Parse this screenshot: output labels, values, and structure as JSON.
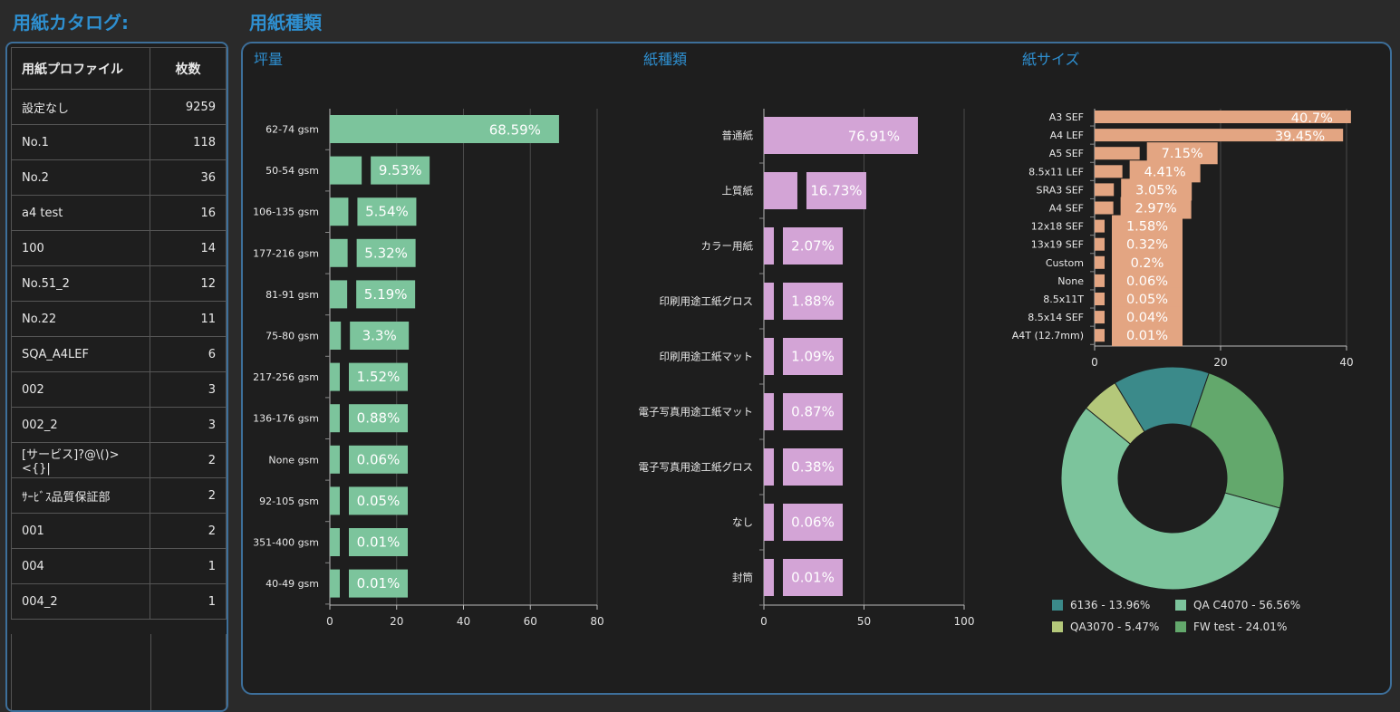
{
  "catalog": {
    "title": "用紙カタログ:",
    "headers": {
      "profile": "用紙プロファイル",
      "count": "枚数"
    },
    "rows": [
      {
        "name": "設定なし",
        "count": "9259"
      },
      {
        "name": "No.1",
        "count": "118"
      },
      {
        "name": "No.2",
        "count": "36"
      },
      {
        "name": "a4 test",
        "count": "16"
      },
      {
        "name": "100",
        "count": "14"
      },
      {
        "name": "No.51_2",
        "count": "12"
      },
      {
        "name": "No.22",
        "count": "11"
      },
      {
        "name": "SQA_A4LEF",
        "count": "6"
      },
      {
        "name": "002",
        "count": "3"
      },
      {
        "name": "002_2",
        "count": "3"
      },
      {
        "name": "[サービス]?@\\()><{}|",
        "count": "2"
      },
      {
        "name": "ｻｰﾋﾞｽ品質保証部",
        "count": "2"
      },
      {
        "name": "001",
        "count": "2"
      },
      {
        "name": "004",
        "count": "1"
      },
      {
        "name": "004_2",
        "count": "1"
      }
    ]
  },
  "types": {
    "title": "用紙種類"
  },
  "chart_data": [
    {
      "id": "weight",
      "type": "bar",
      "orientation": "horizontal",
      "title": "坪量",
      "categories": [
        "62-74 gsm",
        "50-54 gsm",
        "106-135 gsm",
        "177-216 gsm",
        "81-91 gsm",
        "75-80 gsm",
        "217-256 gsm",
        "136-176 gsm",
        "None gsm",
        "92-105 gsm",
        "351-400 gsm",
        "40-49 gsm"
      ],
      "values": [
        68.59,
        9.53,
        5.54,
        5.32,
        5.19,
        3.3,
        1.52,
        0.88,
        0.06,
        0.05,
        0.01,
        0.01
      ],
      "labels": [
        "68.59%",
        "9.53%",
        "5.54%",
        "5.32%",
        "5.19%",
        "3.3%",
        "1.52%",
        "0.88%",
        "0.06%",
        "0.05%",
        "0.01%",
        "0.01%"
      ],
      "xlim": [
        0,
        80
      ],
      "xticks": [
        0,
        20,
        40,
        60,
        80
      ],
      "grid": true,
      "color": "#7cc49c"
    },
    {
      "id": "kind",
      "type": "bar",
      "orientation": "horizontal",
      "title": "紙種類",
      "categories": [
        "普通紙",
        "上質紙",
        "カラー用紙",
        "印刷用途工紙グロス",
        "印刷用途工紙マット",
        "電子写真用途工紙マット",
        "電子写真用途工紙グロス",
        "なし",
        "封筒"
      ],
      "values": [
        76.91,
        16.73,
        2.07,
        1.88,
        1.09,
        0.87,
        0.38,
        0.06,
        0.01
      ],
      "labels": [
        "76.91%",
        "16.73%",
        "2.07%",
        "1.88%",
        "1.09%",
        "0.87%",
        "0.38%",
        "0.06%",
        "0.01%"
      ],
      "xlim": [
        0,
        100
      ],
      "xticks": [
        0,
        50,
        100
      ],
      "grid": true,
      "color": "#d3a4d6"
    },
    {
      "id": "size",
      "type": "bar",
      "orientation": "horizontal",
      "title": "紙サイズ",
      "categories": [
        "A3 SEF",
        "A4 LEF",
        "A5 SEF",
        "8.5x11 LEF",
        "SRA3 SEF",
        "A4 SEF",
        "12x18 SEF",
        "13x19 SEF",
        "Custom",
        "None",
        "8.5x11T",
        "8.5x14 SEF",
        "A4T (12.7mm)"
      ],
      "values": [
        40.7,
        39.45,
        7.15,
        4.41,
        3.05,
        2.97,
        1.58,
        0.32,
        0.2,
        0.06,
        0.05,
        0.04,
        0.01
      ],
      "labels": [
        "40.7%",
        "39.45%",
        "7.15%",
        "4.41%",
        "3.05%",
        "2.97%",
        "1.58%",
        "0.32%",
        "0.2%",
        "0.06%",
        "0.05%",
        "0.04%",
        "0.01%"
      ],
      "xlim": [
        0,
        40
      ],
      "xticks": [
        0,
        20,
        40
      ],
      "grid": true,
      "color": "#e3a582"
    },
    {
      "id": "profile-pie",
      "type": "pie",
      "donut": true,
      "legend_position": "bottom",
      "slices": [
        {
          "label": "6136 - 13.96%",
          "value": 13.96,
          "color": "#3b8a8a"
        },
        {
          "label": "QA C4070 - 56.56%",
          "value": 56.56,
          "color": "#7cc49c"
        },
        {
          "label": "QA3070 - 5.47%",
          "value": 5.47,
          "color": "#b4c87a"
        },
        {
          "label": "FW test - 24.01%",
          "value": 24.01,
          "color": "#63a86c"
        }
      ]
    }
  ]
}
